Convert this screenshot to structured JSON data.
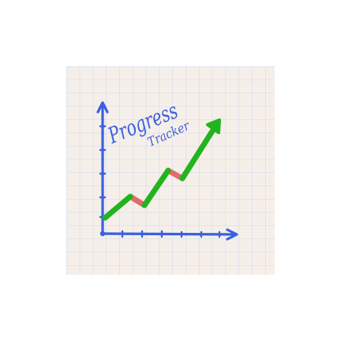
{
  "logo": {
    "text_line1": "Progress",
    "text_line2": "Tracker",
    "colors": {
      "background": "#ffffff",
      "paper": "#f6efe9",
      "grid": "#c9dbee",
      "axis": "#3a5fe0",
      "trend_up": "#22b41e",
      "trend_down": "#e26b6b",
      "lettering": "#3a5fe0"
    },
    "icons": [
      "axis-arrow-icon",
      "trend-arrow-icon"
    ]
  }
}
